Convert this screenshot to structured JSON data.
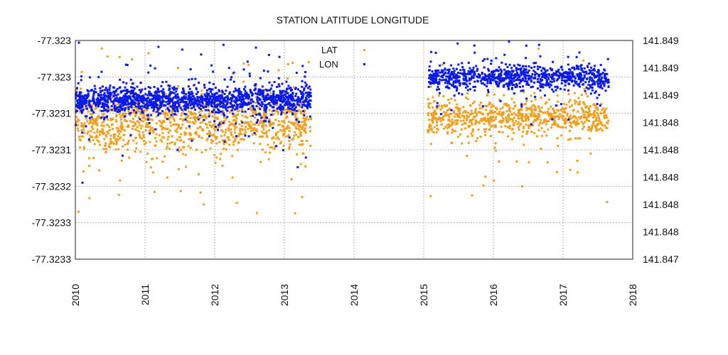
{
  "chart_data": {
    "type": "scatter",
    "title": "STATION LATITUDE LONGITUDE",
    "xlabel": "",
    "ylabel": "",
    "ylabel_right": "",
    "x_ticks": [
      "2010",
      "2011",
      "2012",
      "2013",
      "2014",
      "2015",
      "2016",
      "2017",
      "2018"
    ],
    "xlim": [
      2010,
      2018
    ],
    "y_left_ticks": [
      "-77.323",
      "-77.323",
      "-77.3231",
      "-77.3231",
      "-77.3232",
      "-77.3233",
      "-77.3233"
    ],
    "y_left_range": [
      -77.32332,
      -77.32302
    ],
    "y_right_ticks": [
      "141.849",
      "141.849",
      "141.849",
      "141.848",
      "141.848",
      "141.848",
      "141.848",
      "141.848",
      "141.847"
    ],
    "y_right_range": [
      141.8468,
      141.8492
    ],
    "grid": true,
    "legend_position": "top-center",
    "colors": {
      "lat": "#f0a020",
      "lon": "#0a1ae6"
    },
    "series": [
      {
        "name": "LAT",
        "axis": "left",
        "segments": [
          {
            "x_range": [
              2010.0,
              2013.38
            ],
            "center": -77.323135,
            "spread": 1.8e-05,
            "outlier_spread": 6e-05,
            "count": 1100
          },
          {
            "x_range": [
              2015.05,
              2017.65
            ],
            "center": -77.323125,
            "spread": 1.2e-05,
            "outlier_spread": 5e-05,
            "count": 800
          }
        ]
      },
      {
        "name": "LON",
        "axis": "right",
        "segments": [
          {
            "x_range": [
              2010.0,
              2013.38
            ],
            "center": 141.84855,
            "spread": 7e-05,
            "outlier_spread": 0.0003,
            "count": 1600
          },
          {
            "x_range": [
              2015.05,
              2017.65
            ],
            "center": 141.8488,
            "spread": 6e-05,
            "outlier_spread": 0.0002,
            "count": 900
          }
        ]
      }
    ]
  }
}
